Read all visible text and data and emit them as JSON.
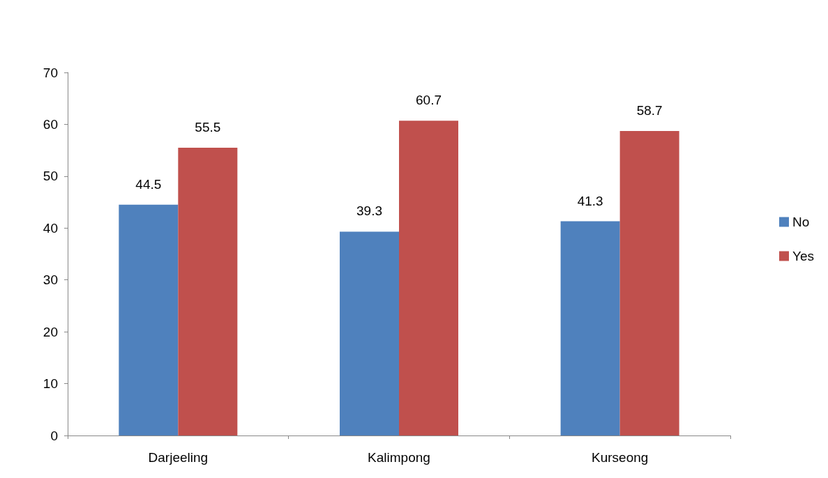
{
  "chart_data": {
    "type": "bar",
    "categories": [
      "Darjeeling",
      "Kalimpong",
      "Kurseong"
    ],
    "series": [
      {
        "name": "No",
        "color": "#4f81bd",
        "values": [
          44.5,
          39.3,
          41.3
        ]
      },
      {
        "name": "Yes",
        "color": "#c0504d",
        "values": [
          55.5,
          60.7,
          58.7
        ]
      }
    ],
    "ylim": [
      0,
      70
    ],
    "yticks": [
      0,
      10,
      20,
      30,
      40,
      50,
      60,
      70
    ],
    "grid": false,
    "legend": "right",
    "data_labels": true
  }
}
